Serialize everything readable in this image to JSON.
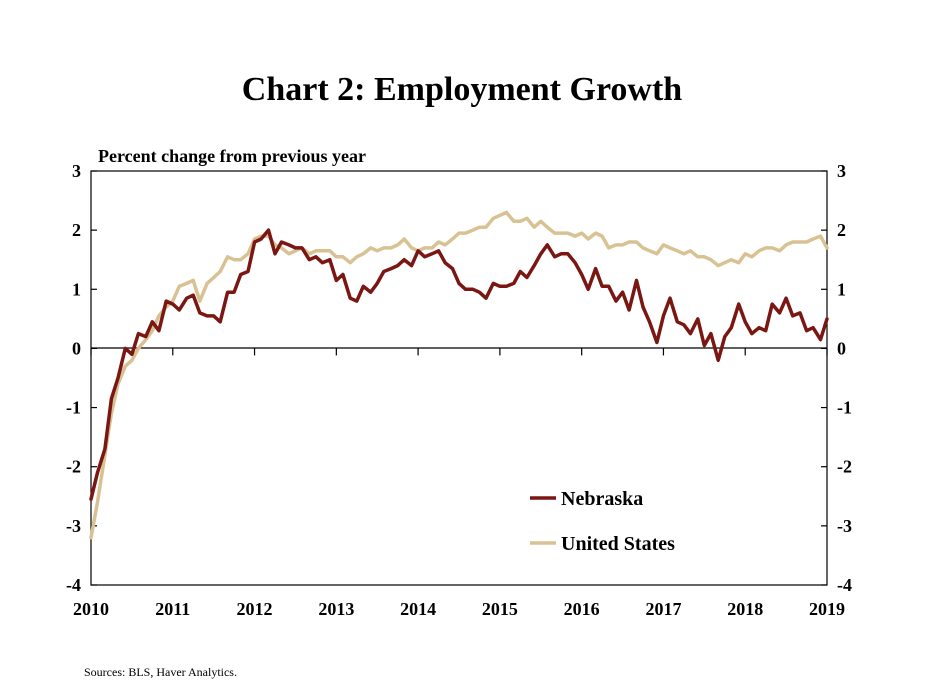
{
  "chart_data": {
    "type": "line",
    "title": "Chart 2: Employment Growth",
    "ylabel": "Percent change from previous year",
    "source": "Sources: BLS, Haver Analytics.",
    "x_ticks": [
      "2010",
      "2011",
      "2012",
      "2013",
      "2014",
      "2015",
      "2016",
      "2017",
      "2018",
      "2019"
    ],
    "y_ticks": [
      "3",
      "2",
      "1",
      "0",
      "-1",
      "-2",
      "-3",
      "-4"
    ],
    "xlim": [
      2010,
      2019
    ],
    "ylim": [
      -4,
      3
    ],
    "grid": false,
    "legend_position": "lower-right",
    "zero_line": true,
    "series": [
      {
        "name": "Nebraska",
        "color": "#7a1712",
        "points": [
          [
            2010.0,
            -2.55
          ],
          [
            2010.08,
            -2.1
          ],
          [
            2010.17,
            -1.7
          ],
          [
            2010.25,
            -0.85
          ],
          [
            2010.33,
            -0.5
          ],
          [
            2010.42,
            0.0
          ],
          [
            2010.5,
            -0.1
          ],
          [
            2010.58,
            0.25
          ],
          [
            2010.67,
            0.2
          ],
          [
            2010.75,
            0.45
          ],
          [
            2010.83,
            0.3
          ],
          [
            2010.92,
            0.8
          ],
          [
            2011.0,
            0.75
          ],
          [
            2011.08,
            0.65
          ],
          [
            2011.17,
            0.85
          ],
          [
            2011.25,
            0.9
          ],
          [
            2011.33,
            0.6
          ],
          [
            2011.42,
            0.55
          ],
          [
            2011.5,
            0.55
          ],
          [
            2011.58,
            0.45
          ],
          [
            2011.67,
            0.95
          ],
          [
            2011.75,
            0.95
          ],
          [
            2011.83,
            1.25
          ],
          [
            2011.92,
            1.3
          ],
          [
            2012.0,
            1.8
          ],
          [
            2012.08,
            1.85
          ],
          [
            2012.17,
            2.0
          ],
          [
            2012.25,
            1.6
          ],
          [
            2012.33,
            1.8
          ],
          [
            2012.42,
            1.75
          ],
          [
            2012.5,
            1.7
          ],
          [
            2012.58,
            1.7
          ],
          [
            2012.67,
            1.5
          ],
          [
            2012.75,
            1.55
          ],
          [
            2012.83,
            1.45
          ],
          [
            2012.92,
            1.5
          ],
          [
            2013.0,
            1.15
          ],
          [
            2013.08,
            1.25
          ],
          [
            2013.17,
            0.85
          ],
          [
            2013.25,
            0.8
          ],
          [
            2013.33,
            1.05
          ],
          [
            2013.42,
            0.95
          ],
          [
            2013.5,
            1.1
          ],
          [
            2013.58,
            1.3
          ],
          [
            2013.67,
            1.35
          ],
          [
            2013.75,
            1.4
          ],
          [
            2013.83,
            1.5
          ],
          [
            2013.92,
            1.4
          ],
          [
            2014.0,
            1.65
          ],
          [
            2014.08,
            1.55
          ],
          [
            2014.17,
            1.6
          ],
          [
            2014.25,
            1.65
          ],
          [
            2014.33,
            1.45
          ],
          [
            2014.42,
            1.35
          ],
          [
            2014.5,
            1.1
          ],
          [
            2014.58,
            1.0
          ],
          [
            2014.67,
            1.0
          ],
          [
            2014.75,
            0.95
          ],
          [
            2014.83,
            0.85
          ],
          [
            2014.92,
            1.1
          ],
          [
            2015.0,
            1.05
          ],
          [
            2015.08,
            1.05
          ],
          [
            2015.17,
            1.1
          ],
          [
            2015.25,
            1.3
          ],
          [
            2015.33,
            1.2
          ],
          [
            2015.42,
            1.4
          ],
          [
            2015.5,
            1.6
          ],
          [
            2015.58,
            1.75
          ],
          [
            2015.67,
            1.55
          ],
          [
            2015.75,
            1.6
          ],
          [
            2015.83,
            1.6
          ],
          [
            2015.92,
            1.45
          ],
          [
            2016.0,
            1.25
          ],
          [
            2016.08,
            1.0
          ],
          [
            2016.17,
            1.35
          ],
          [
            2016.25,
            1.05
          ],
          [
            2016.33,
            1.05
          ],
          [
            2016.42,
            0.8
          ],
          [
            2016.5,
            0.95
          ],
          [
            2016.58,
            0.65
          ],
          [
            2016.67,
            1.15
          ],
          [
            2016.75,
            0.7
          ],
          [
            2016.83,
            0.45
          ],
          [
            2016.92,
            0.1
          ],
          [
            2017.0,
            0.55
          ],
          [
            2017.08,
            0.85
          ],
          [
            2017.17,
            0.45
          ],
          [
            2017.25,
            0.4
          ],
          [
            2017.33,
            0.25
          ],
          [
            2017.42,
            0.5
          ],
          [
            2017.5,
            0.05
          ],
          [
            2017.58,
            0.25
          ],
          [
            2017.67,
            -0.2
          ],
          [
            2017.75,
            0.2
          ],
          [
            2017.83,
            0.35
          ],
          [
            2017.92,
            0.75
          ],
          [
            2018.0,
            0.45
          ],
          [
            2018.08,
            0.25
          ],
          [
            2018.17,
            0.35
          ],
          [
            2018.25,
            0.3
          ],
          [
            2018.33,
            0.75
          ],
          [
            2018.42,
            0.6
          ],
          [
            2018.5,
            0.85
          ],
          [
            2018.58,
            0.55
          ],
          [
            2018.67,
            0.6
          ],
          [
            2018.75,
            0.3
          ],
          [
            2018.83,
            0.35
          ],
          [
            2018.92,
            0.15
          ],
          [
            2019.0,
            0.5
          ]
        ]
      },
      {
        "name": "United States",
        "color": "#d8c293",
        "points": [
          [
            2010.0,
            -3.2
          ],
          [
            2010.08,
            -2.6
          ],
          [
            2010.17,
            -1.8
          ],
          [
            2010.25,
            -1.1
          ],
          [
            2010.33,
            -0.6
          ],
          [
            2010.42,
            -0.3
          ],
          [
            2010.5,
            -0.2
          ],
          [
            2010.58,
            0.0
          ],
          [
            2010.67,
            0.15
          ],
          [
            2010.75,
            0.3
          ],
          [
            2010.83,
            0.55
          ],
          [
            2010.92,
            0.7
          ],
          [
            2011.0,
            0.8
          ],
          [
            2011.08,
            1.05
          ],
          [
            2011.17,
            1.1
          ],
          [
            2011.25,
            1.15
          ],
          [
            2011.33,
            0.8
          ],
          [
            2011.42,
            1.1
          ],
          [
            2011.5,
            1.2
          ],
          [
            2011.58,
            1.3
          ],
          [
            2011.67,
            1.55
          ],
          [
            2011.75,
            1.5
          ],
          [
            2011.83,
            1.5
          ],
          [
            2011.92,
            1.6
          ],
          [
            2012.0,
            1.85
          ],
          [
            2012.08,
            1.9
          ],
          [
            2012.17,
            1.9
          ],
          [
            2012.25,
            1.75
          ],
          [
            2012.33,
            1.7
          ],
          [
            2012.42,
            1.6
          ],
          [
            2012.5,
            1.65
          ],
          [
            2012.58,
            1.7
          ],
          [
            2012.67,
            1.6
          ],
          [
            2012.75,
            1.65
          ],
          [
            2012.83,
            1.65
          ],
          [
            2012.92,
            1.65
          ],
          [
            2013.0,
            1.55
          ],
          [
            2013.08,
            1.55
          ],
          [
            2013.17,
            1.45
          ],
          [
            2013.25,
            1.55
          ],
          [
            2013.33,
            1.6
          ],
          [
            2013.42,
            1.7
          ],
          [
            2013.5,
            1.65
          ],
          [
            2013.58,
            1.7
          ],
          [
            2013.67,
            1.7
          ],
          [
            2013.75,
            1.75
          ],
          [
            2013.83,
            1.85
          ],
          [
            2013.92,
            1.7
          ],
          [
            2014.0,
            1.65
          ],
          [
            2014.08,
            1.7
          ],
          [
            2014.17,
            1.7
          ],
          [
            2014.25,
            1.8
          ],
          [
            2014.33,
            1.75
          ],
          [
            2014.42,
            1.85
          ],
          [
            2014.5,
            1.95
          ],
          [
            2014.58,
            1.95
          ],
          [
            2014.67,
            2.0
          ],
          [
            2014.75,
            2.05
          ],
          [
            2014.83,
            2.05
          ],
          [
            2014.92,
            2.2
          ],
          [
            2015.0,
            2.25
          ],
          [
            2015.08,
            2.3
          ],
          [
            2015.17,
            2.15
          ],
          [
            2015.25,
            2.15
          ],
          [
            2015.33,
            2.2
          ],
          [
            2015.42,
            2.05
          ],
          [
            2015.5,
            2.15
          ],
          [
            2015.58,
            2.05
          ],
          [
            2015.67,
            1.95
          ],
          [
            2015.75,
            1.95
          ],
          [
            2015.83,
            1.95
          ],
          [
            2015.92,
            1.9
          ],
          [
            2016.0,
            1.95
          ],
          [
            2016.08,
            1.85
          ],
          [
            2016.17,
            1.95
          ],
          [
            2016.25,
            1.9
          ],
          [
            2016.33,
            1.7
          ],
          [
            2016.42,
            1.75
          ],
          [
            2016.5,
            1.75
          ],
          [
            2016.58,
            1.8
          ],
          [
            2016.67,
            1.8
          ],
          [
            2016.75,
            1.7
          ],
          [
            2016.83,
            1.65
          ],
          [
            2016.92,
            1.6
          ],
          [
            2017.0,
            1.75
          ],
          [
            2017.08,
            1.7
          ],
          [
            2017.17,
            1.65
          ],
          [
            2017.25,
            1.6
          ],
          [
            2017.33,
            1.65
          ],
          [
            2017.42,
            1.55
          ],
          [
            2017.5,
            1.55
          ],
          [
            2017.58,
            1.5
          ],
          [
            2017.67,
            1.4
          ],
          [
            2017.75,
            1.45
          ],
          [
            2017.83,
            1.5
          ],
          [
            2017.92,
            1.45
          ],
          [
            2018.0,
            1.6
          ],
          [
            2018.08,
            1.55
          ],
          [
            2018.17,
            1.65
          ],
          [
            2018.25,
            1.7
          ],
          [
            2018.33,
            1.7
          ],
          [
            2018.42,
            1.65
          ],
          [
            2018.5,
            1.75
          ],
          [
            2018.58,
            1.8
          ],
          [
            2018.67,
            1.8
          ],
          [
            2018.75,
            1.8
          ],
          [
            2018.83,
            1.85
          ],
          [
            2018.92,
            1.9
          ],
          [
            2019.0,
            1.7
          ]
        ]
      }
    ]
  }
}
